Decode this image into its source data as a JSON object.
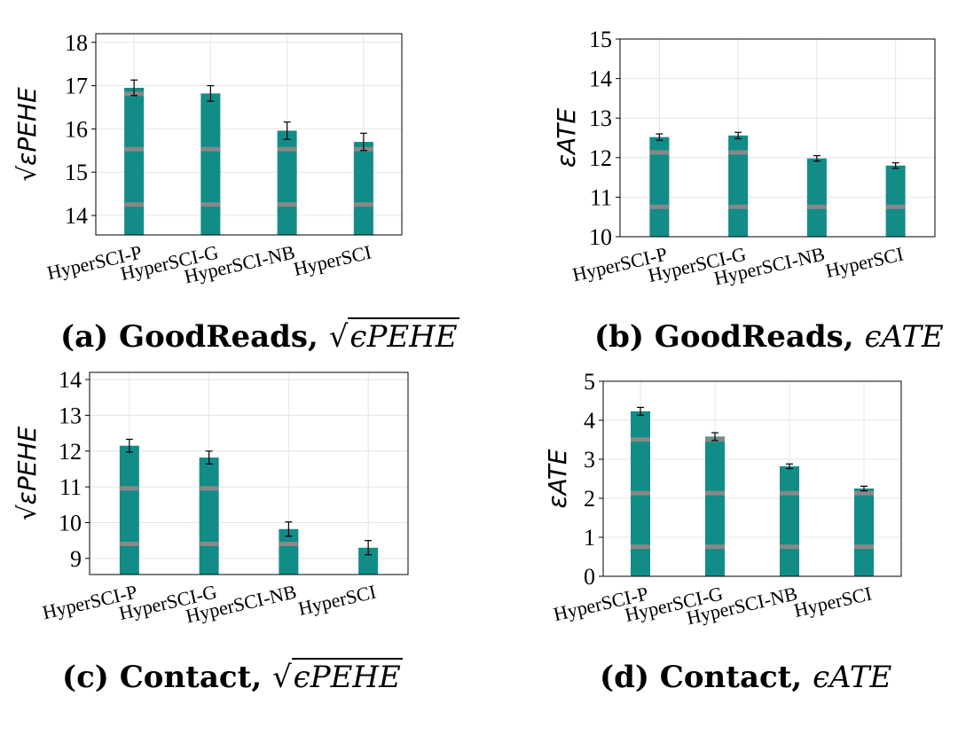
{
  "figure": {
    "panels": [
      {
        "caption": {
          "label": "(a) GoodReads,",
          "metric_root": "√",
          "metric": "ϵPEHE"
        },
        "ylabel": "√εPEHE"
      },
      {
        "caption": {
          "label": "(b) GoodReads,",
          "metric_root": "",
          "metric": "ϵATE"
        },
        "ylabel": "εATE"
      },
      {
        "caption": {
          "label": "(c) Contact,",
          "metric_root": "√",
          "metric": "ϵPEHE"
        },
        "ylabel": "√εPEHE"
      },
      {
        "caption": {
          "label": "(d) Contact,",
          "metric_root": "",
          "metric": "ϵATE"
        },
        "ylabel": "εATE"
      }
    ]
  },
  "chart_data": [
    {
      "type": "bar",
      "title": "(a) GoodReads, √ϵPEHE",
      "categories": [
        "HyperSCI-P",
        "HyperSCI-G",
        "HyperSCI-NB",
        "HyperSCI"
      ],
      "values": [
        16.95,
        16.82,
        15.96,
        15.7
      ],
      "errors": [
        0.18,
        0.18,
        0.2,
        0.2
      ],
      "ylabel": "√εPEHE",
      "ylim": [
        13.55,
        18.2
      ],
      "yticks": [
        14,
        15,
        16,
        17,
        18
      ],
      "grid": true,
      "bar_color": "#128c87",
      "band_color": "#888888"
    },
    {
      "type": "bar",
      "title": "(b) GoodReads, ϵATE",
      "categories": [
        "HyperSCI-P",
        "HyperSCI-G",
        "HyperSCI-NB",
        "HyperSCI"
      ],
      "values": [
        12.52,
        12.56,
        11.98,
        11.8
      ],
      "errors": [
        0.08,
        0.08,
        0.07,
        0.07
      ],
      "ylabel": "εATE",
      "ylim": [
        10,
        15
      ],
      "yticks": [
        10,
        11,
        12,
        13,
        14,
        15
      ],
      "grid": true,
      "bar_color": "#128c87",
      "band_color": "#888888"
    },
    {
      "type": "bar",
      "title": "(c) Contact, √ϵPEHE",
      "categories": [
        "HyperSCI-P",
        "HyperSCI-G",
        "HyperSCI-NB",
        "HyperSCI"
      ],
      "values": [
        12.15,
        11.82,
        9.82,
        9.3
      ],
      "errors": [
        0.18,
        0.18,
        0.2,
        0.2
      ],
      "ylabel": "√εPEHE",
      "ylim": [
        8.55,
        14.2
      ],
      "yticks": [
        9,
        10,
        11,
        12,
        13,
        14
      ],
      "grid": true,
      "bar_color": "#128c87",
      "band_color": "#888888"
    },
    {
      "type": "bar",
      "title": "(d) Contact, ϵATE",
      "categories": [
        "HyperSCI-P",
        "HyperSCI-G",
        "HyperSCI-NB",
        "HyperSCI"
      ],
      "values": [
        4.23,
        3.58,
        2.82,
        2.25
      ],
      "errors": [
        0.1,
        0.1,
        0.06,
        0.06
      ],
      "ylabel": "εATE",
      "ylim": [
        0,
        5
      ],
      "yticks": [
        0,
        1,
        2,
        3,
        4,
        5
      ],
      "grid": true,
      "bar_color": "#128c87",
      "band_color": "#888888"
    }
  ]
}
